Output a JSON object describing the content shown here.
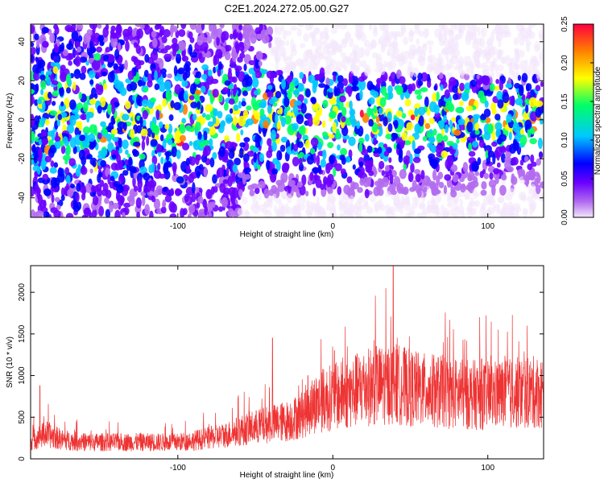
{
  "title": "C2E1.2024.272.05.00.G27",
  "chart_data": [
    {
      "type": "heatmap",
      "xlabel": "Height of straight line (km)",
      "ylabel": "Frequency (Hz)",
      "xlim": [
        -195,
        136
      ],
      "ylim": [
        -50,
        49
      ],
      "xticks": [
        -100,
        0,
        100
      ],
      "yticks": [
        -40,
        -20,
        0,
        20,
        40
      ],
      "colorbar": {
        "label": "Normalized spectral amplitude",
        "range": [
          0.0,
          0.25
        ],
        "ticks": [
          "0.00",
          "0.05",
          "0.10",
          "0.15",
          "0.20",
          "0.25"
        ],
        "colormap": [
          "#f2e6fb",
          "#b26cf0",
          "#6a00ff",
          "#0000ff",
          "#00c8ff",
          "#00ff66",
          "#ffff00",
          "#ff8000",
          "#ff0040"
        ]
      },
      "description_data": {
        "noise_floor_region_top": "x > -40 km, f > 25 Hz",
        "noise_floor_region_bottom": "x > -60 km, f < -38 Hz",
        "signal_band_center_hz": 0
      }
    },
    {
      "type": "line",
      "xlabel": "Height of straight line (km)",
      "ylabel": "SNR (10 * v/v)",
      "xlim": [
        -195,
        136
      ],
      "ylim": [
        0,
        2320
      ],
      "xticks": [
        -100,
        0,
        100
      ],
      "yticks": [
        0,
        500,
        1000,
        1500,
        2000
      ],
      "color": "#ee3333",
      "series": [
        {
          "x": [
            -195,
            -185,
            -175,
            -160,
            -140,
            -120,
            -100,
            -90,
            -80,
            -70,
            -60,
            -50,
            -40,
            -30,
            -20,
            -15,
            -10,
            -5,
            0,
            10,
            20,
            30,
            40,
            50,
            60,
            70,
            80,
            90,
            100,
            110,
            120,
            130,
            136
          ],
          "values": [
            220,
            300,
            230,
            200,
            200,
            200,
            200,
            220,
            250,
            280,
            340,
            380,
            420,
            450,
            530,
            620,
            680,
            720,
            740,
            780,
            860,
            880,
            900,
            850,
            820,
            810,
            780,
            770,
            760,
            780,
            790,
            800,
            800
          ],
          "spikes": [
            [
              -189,
              880
            ],
            [
              -39,
              1450
            ],
            [
              -16,
              1000
            ],
            [
              1,
              1300
            ],
            [
              39,
              2320
            ],
            [
              28,
              1350
            ],
            [
              65,
              1200
            ],
            [
              96,
              1200
            ]
          ]
        }
      ]
    }
  ]
}
